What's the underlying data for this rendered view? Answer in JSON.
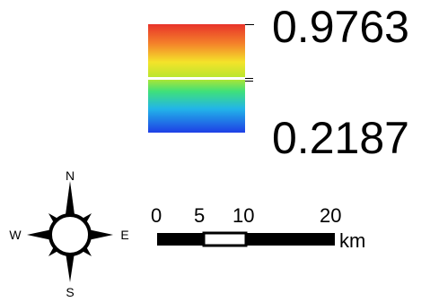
{
  "legend": {
    "max_label": "0.9763",
    "min_label": "0.2187",
    "max_value": 0.9763,
    "min_value": 0.2187,
    "stops": [
      {
        "offset": 0.0,
        "color": "#e8332a"
      },
      {
        "offset": 0.18,
        "color": "#f4822a"
      },
      {
        "offset": 0.35,
        "color": "#f4e32a"
      },
      {
        "offset": 0.5,
        "color": "#b5e62e"
      },
      {
        "offset": 0.62,
        "color": "#3fe07a"
      },
      {
        "offset": 0.78,
        "color": "#22b5e8"
      },
      {
        "offset": 1.0,
        "color": "#1e3fe6"
      }
    ],
    "white_line_fraction": 0.5
  },
  "north_arrow": {
    "north_label": "N",
    "south_label": "S",
    "east_label": "E",
    "west_label": "W"
  },
  "scale_bar": {
    "unit": "km",
    "ticks": [
      {
        "value": 0,
        "label": "0"
      },
      {
        "value": 5,
        "label": "5"
      },
      {
        "value": 10,
        "label": "10"
      },
      {
        "value": 20,
        "label": "20"
      }
    ],
    "max_value": 20
  }
}
